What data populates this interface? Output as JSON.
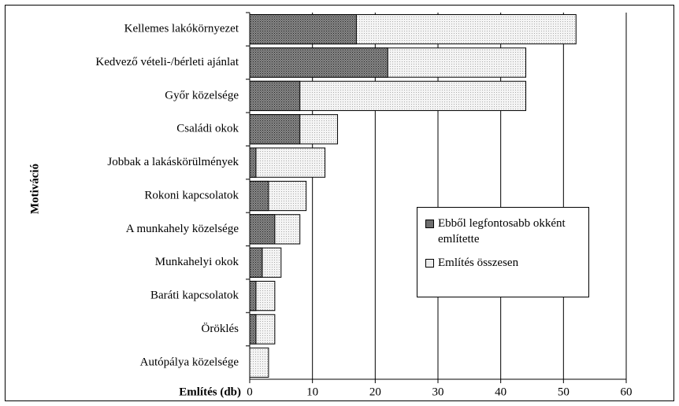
{
  "chart_data": {
    "type": "bar",
    "orientation": "horizontal",
    "xlabel": "Említés (db)",
    "ylabel": "Motiváció",
    "categories": [
      "Kellemes lakókörnyezet",
      "Kedvező vételi-/bérleti ajánlat",
      "Győr közelsége",
      "Családi okok",
      "Jobbak a lakáskörülmények",
      "Rokoni kapcsolatok",
      "A munkahely közelsége",
      "Munkahelyi okok",
      "Baráti kapcsolatok",
      "Öröklés",
      "Autópálya közelsége"
    ],
    "series": [
      {
        "name": "Ebből legfontosabb okként említette",
        "color": "#6e6e6e",
        "values": [
          17,
          22,
          8,
          8,
          1,
          3,
          4,
          2,
          1,
          1,
          0
        ]
      },
      {
        "name": "Említés összesen",
        "color": "#ececec",
        "values": [
          52,
          44,
          44,
          14,
          12,
          9,
          8,
          5,
          4,
          4,
          3
        ]
      }
    ],
    "xlim": [
      0,
      60
    ],
    "xticks": [
      0,
      10,
      20,
      30,
      40,
      50,
      60
    ],
    "grid": true,
    "legend": "right"
  }
}
